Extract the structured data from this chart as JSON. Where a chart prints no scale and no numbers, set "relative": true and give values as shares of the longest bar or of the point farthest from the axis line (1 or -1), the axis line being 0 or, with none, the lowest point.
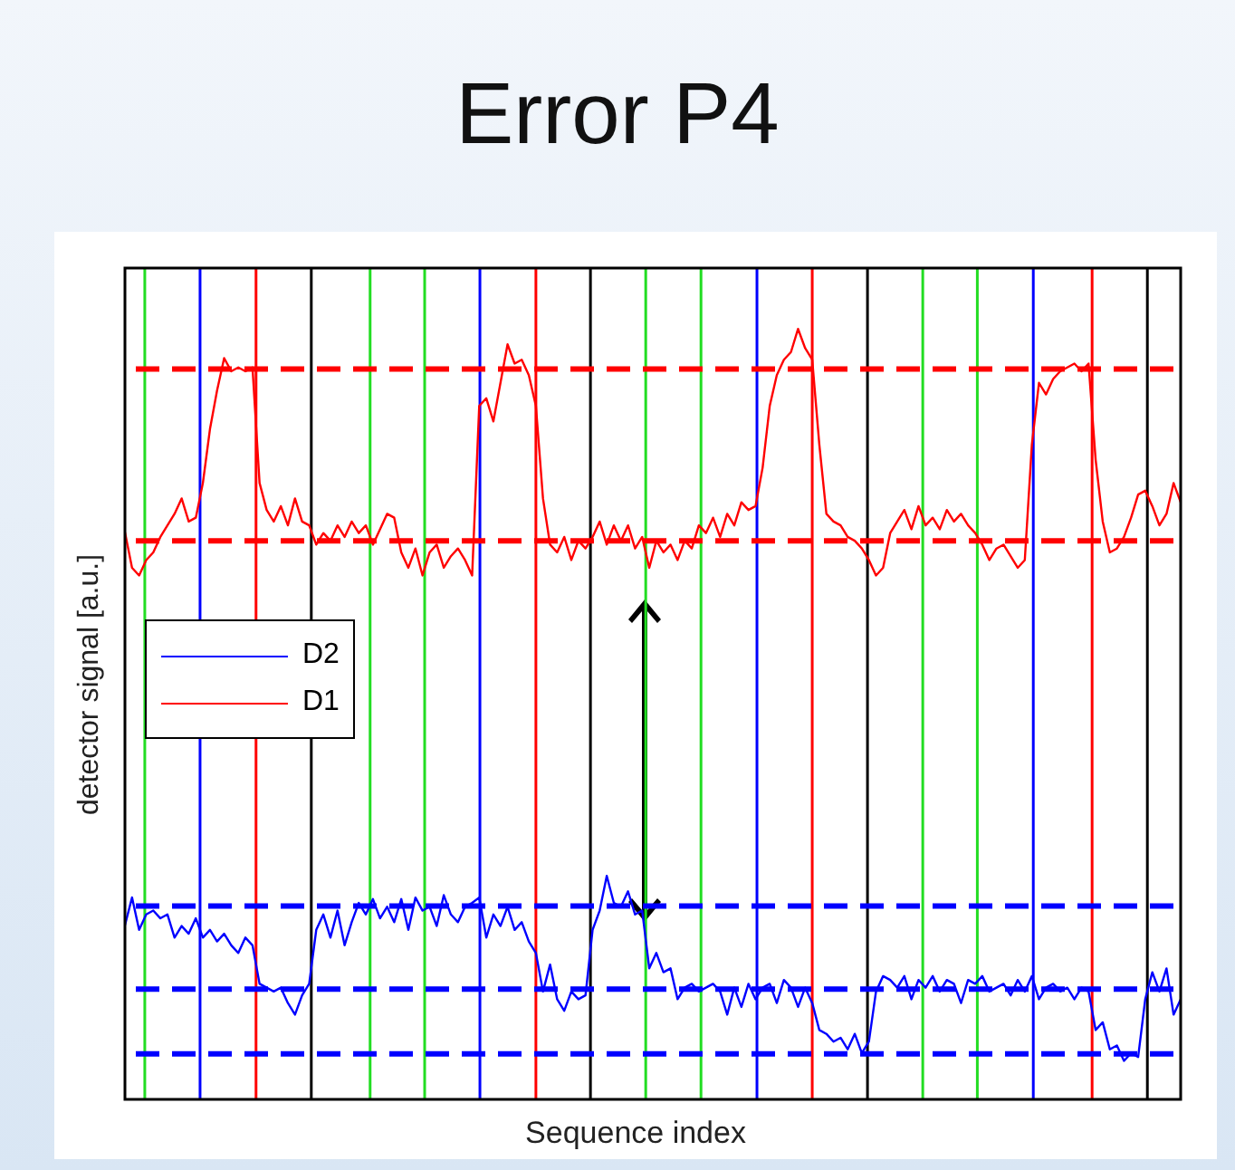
{
  "chart_data": {
    "type": "line",
    "title": "Error P4",
    "xlabel": "Sequence index",
    "ylabel": "detector signal [a.u.]",
    "relative": true,
    "marker": "none",
    "line_style": "solid",
    "legend": "left",
    "categories": [
      null,
      null,
      null,
      null,
      null,
      null,
      null,
      null,
      null,
      null,
      null,
      null,
      null,
      null,
      null,
      null,
      null,
      null,
      null,
      null,
      null,
      null,
      null,
      null,
      null,
      null,
      null,
      null,
      null,
      null,
      null,
      null,
      null,
      null,
      null,
      null,
      null,
      null,
      null,
      null,
      null,
      null,
      null,
      null,
      null,
      null,
      null,
      null,
      null,
      null,
      null,
      null,
      null,
      null,
      null,
      null,
      null,
      null,
      null,
      null,
      null,
      null,
      null,
      null,
      null,
      null,
      null,
      null,
      null,
      null,
      null,
      null,
      null,
      null,
      null,
      null,
      null,
      null,
      null,
      null,
      null,
      null,
      null,
      null,
      null,
      null,
      null,
      null,
      null,
      null,
      null,
      null,
      null,
      null,
      null,
      null,
      null,
      null,
      null,
      null,
      null,
      null,
      null,
      null,
      null,
      null,
      null,
      null,
      null,
      null,
      null,
      null,
      null,
      null,
      null,
      null,
      null,
      null,
      null,
      null,
      null,
      null,
      null,
      null,
      null,
      null,
      null,
      null,
      null,
      null,
      null,
      null,
      null,
      null,
      null,
      null,
      null,
      null,
      null,
      null,
      null,
      null,
      null,
      null,
      null,
      null,
      null,
      null,
      null,
      null
    ],
    "series": [
      {
        "name": "D2",
        "color": "#0000ff",
        "values": [
          0.226,
          0.262,
          0.22,
          0.24,
          0.245,
          0.235,
          0.24,
          0.21,
          0.225,
          0.215,
          0.235,
          0.21,
          0.22,
          0.205,
          0.215,
          0.2,
          0.19,
          0.21,
          0.2,
          0.15,
          0.145,
          0.14,
          0.145,
          0.125,
          0.11,
          0.135,
          0.15,
          0.22,
          0.24,
          0.21,
          0.245,
          0.2,
          0.23,
          0.255,
          0.24,
          0.26,
          0.235,
          0.25,
          0.23,
          0.26,
          0.22,
          0.262,
          0.245,
          0.25,
          0.225,
          0.265,
          0.24,
          0.23,
          0.25,
          0.255,
          0.262,
          0.21,
          0.24,
          0.225,
          0.25,
          0.22,
          0.23,
          0.205,
          0.19,
          0.14,
          0.175,
          0.13,
          0.115,
          0.14,
          0.13,
          0.135,
          0.22,
          0.245,
          0.29,
          0.255,
          0.25,
          0.27,
          0.24,
          0.245,
          0.17,
          0.19,
          0.165,
          0.17,
          0.13,
          0.145,
          0.15,
          0.14,
          0.145,
          0.15,
          0.14,
          0.11,
          0.145,
          0.12,
          0.15,
          0.13,
          0.145,
          0.15,
          0.125,
          0.155,
          0.145,
          0.12,
          0.145,
          0.125,
          0.09,
          0.085,
          0.075,
          0.08,
          0.065,
          0.085,
          0.06,
          0.075,
          0.14,
          0.16,
          0.155,
          0.145,
          0.16,
          0.13,
          0.155,
          0.145,
          0.16,
          0.14,
          0.155,
          0.15,
          0.125,
          0.155,
          0.15,
          0.16,
          0.14,
          0.145,
          0.15,
          0.135,
          0.155,
          0.14,
          0.16,
          0.13,
          0.145,
          0.15,
          0.14,
          0.145,
          0.13,
          0.145,
          0.14,
          0.09,
          0.1,
          0.065,
          0.07,
          0.05,
          0.06,
          0.055,
          0.13,
          0.165,
          0.14,
          0.17,
          0.11,
          0.13
        ]
      },
      {
        "name": "D1",
        "color": "#ff0000",
        "values": [
          0.736,
          0.69,
          0.68,
          0.7,
          0.71,
          0.73,
          0.745,
          0.76,
          0.78,
          0.75,
          0.755,
          0.8,
          0.87,
          0.92,
          0.962,
          0.945,
          0.95,
          0.945,
          0.95,
          0.8,
          0.765,
          0.75,
          0.77,
          0.745,
          0.78,
          0.75,
          0.745,
          0.72,
          0.735,
          0.725,
          0.745,
          0.73,
          0.75,
          0.735,
          0.745,
          0.72,
          0.74,
          0.76,
          0.755,
          0.71,
          0.69,
          0.715,
          0.68,
          0.71,
          0.72,
          0.69,
          0.705,
          0.715,
          0.7,
          0.68,
          0.9,
          0.91,
          0.88,
          0.93,
          0.98,
          0.955,
          0.96,
          0.94,
          0.9,
          0.78,
          0.72,
          0.71,
          0.73,
          0.7,
          0.725,
          0.715,
          0.73,
          0.75,
          0.72,
          0.745,
          0.725,
          0.745,
          0.715,
          0.73,
          0.69,
          0.725,
          0.71,
          0.72,
          0.7,
          0.725,
          0.715,
          0.745,
          0.735,
          0.755,
          0.73,
          0.76,
          0.745,
          0.775,
          0.765,
          0.77,
          0.82,
          0.9,
          0.94,
          0.96,
          0.97,
          1.0,
          0.975,
          0.96,
          0.85,
          0.76,
          0.75,
          0.745,
          0.73,
          0.725,
          0.715,
          0.7,
          0.68,
          0.69,
          0.735,
          0.75,
          0.765,
          0.74,
          0.77,
          0.745,
          0.755,
          0.74,
          0.765,
          0.75,
          0.76,
          0.745,
          0.735,
          0.72,
          0.7,
          0.715,
          0.72,
          0.705,
          0.69,
          0.7,
          0.85,
          0.93,
          0.915,
          0.935,
          0.945,
          0.95,
          0.955,
          0.945,
          0.955,
          0.83,
          0.75,
          0.71,
          0.715,
          0.73,
          0.755,
          0.785,
          0.79,
          0.77,
          0.745,
          0.76,
          0.8,
          0.775
        ]
      }
    ],
    "ref_lines": [
      {
        "axis": "y",
        "value": 0.948,
        "color": "#ff0000",
        "line_style": "dashed"
      },
      {
        "axis": "y",
        "value": 0.725,
        "color": "#ff0000",
        "line_style": "dashed"
      },
      {
        "axis": "y",
        "value": 0.251,
        "color": "#0000ff",
        "line_style": "dashed"
      },
      {
        "axis": "y",
        "value": 0.143,
        "color": "#0000ff",
        "line_style": "dashed"
      },
      {
        "axis": "y",
        "value": 0.059,
        "color": "#0000ff",
        "line_style": "dashed"
      }
    ]
  }
}
